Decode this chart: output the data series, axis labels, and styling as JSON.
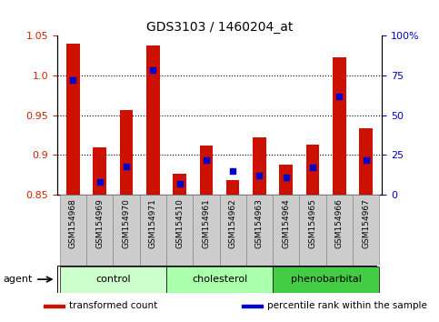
{
  "title": "GDS3103 / 1460204_at",
  "samples": [
    "GSM154968",
    "GSM154969",
    "GSM154970",
    "GSM154971",
    "GSM154510",
    "GSM154961",
    "GSM154962",
    "GSM154963",
    "GSM154964",
    "GSM154965",
    "GSM154966",
    "GSM154967"
  ],
  "red_values": [
    1.04,
    0.91,
    0.956,
    1.037,
    0.877,
    0.912,
    0.868,
    0.922,
    0.888,
    0.913,
    1.022,
    0.934
  ],
  "blue_values_pct": [
    72,
    8,
    18,
    78,
    7,
    22,
    15,
    12,
    11,
    17,
    62,
    22
  ],
  "ylim_left": [
    0.85,
    1.05
  ],
  "ylim_right": [
    0,
    100
  ],
  "yticks_left": [
    0.85,
    0.9,
    0.95,
    1.0,
    1.05
  ],
  "yticks_right": [
    0,
    25,
    50,
    75,
    100
  ],
  "ytick_labels_right": [
    "0",
    "25",
    "50",
    "75",
    "100%"
  ],
  "groups": [
    {
      "label": "control",
      "indices": [
        0,
        1,
        2,
        3
      ],
      "color": "#ccffcc"
    },
    {
      "label": "cholesterol",
      "indices": [
        4,
        5,
        6,
        7
      ],
      "color": "#aaffaa"
    },
    {
      "label": "phenobarbital",
      "indices": [
        8,
        9,
        10,
        11
      ],
      "color": "#44cc44"
    }
  ],
  "bar_color": "#cc1100",
  "dot_color": "#0000cc",
  "ylabel_left_color": "#cc2200",
  "ylabel_right_color": "#0000cc",
  "bar_bottom": 0.85,
  "dot_size": 16,
  "agent_label": "agent",
  "legend_items": [
    {
      "label": "transformed count",
      "color": "#cc1100"
    },
    {
      "label": "percentile rank within the sample",
      "color": "#0000cc"
    }
  ],
  "gridline_ticks": [
    0.9,
    0.95,
    1.0
  ],
  "xticklabel_bg": "#cccccc",
  "xticklabel_border": "#888888"
}
